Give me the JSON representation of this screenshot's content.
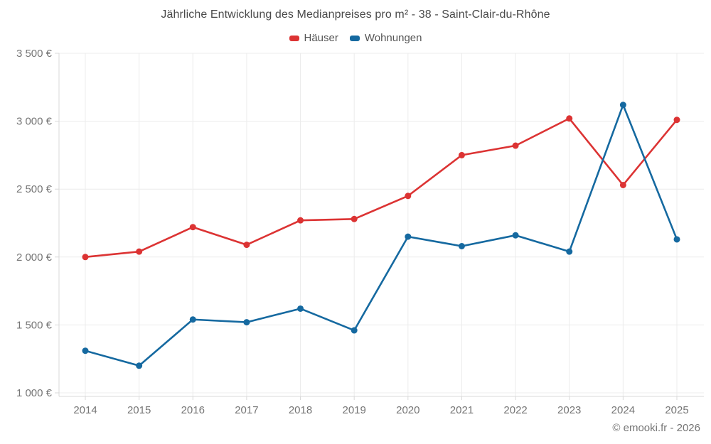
{
  "chart_data": {
    "type": "line",
    "title": "Jährliche Entwicklung des Medianpreises pro m² - 38 - Saint-Clair-du-Rhône",
    "categories": [
      "2014",
      "2015",
      "2016",
      "2017",
      "2018",
      "2019",
      "2020",
      "2021",
      "2022",
      "2023",
      "2024",
      "2025"
    ],
    "series": [
      {
        "name": "Häuser",
        "color": "#dc3333",
        "values": [
          2000,
          2040,
          2220,
          2090,
          2270,
          2280,
          2450,
          2750,
          2820,
          3020,
          2530,
          3010
        ]
      },
      {
        "name": "Wohnungen",
        "color": "#1569a0",
        "values": [
          1310,
          1200,
          1540,
          1520,
          1620,
          1460,
          2150,
          2080,
          2160,
          2040,
          3120,
          2130
        ]
      }
    ],
    "y_ticks": [
      {
        "value": 1000,
        "label": "1 000 €"
      },
      {
        "value": 1500,
        "label": "1 500 €"
      },
      {
        "value": 2000,
        "label": "2 000 €"
      },
      {
        "value": 2500,
        "label": "2 500 €"
      },
      {
        "value": 3000,
        "label": "3 000 €"
      },
      {
        "value": 3500,
        "label": "3 500 €"
      }
    ],
    "ylim": [
      1000,
      3500
    ],
    "xlabel": "",
    "ylabel": "",
    "grid": true,
    "legend_position": "top"
  },
  "colors": {
    "grid": "#ececec",
    "axis_line": "#d9d9d9",
    "tick_mark": "#d9d9d9",
    "axis_text": "#757575",
    "title_text": "#4a4a4a",
    "legend_text": "#555555",
    "background": "#ffffff"
  },
  "footer": {
    "credit": "© emooki.fr - 2026"
  }
}
